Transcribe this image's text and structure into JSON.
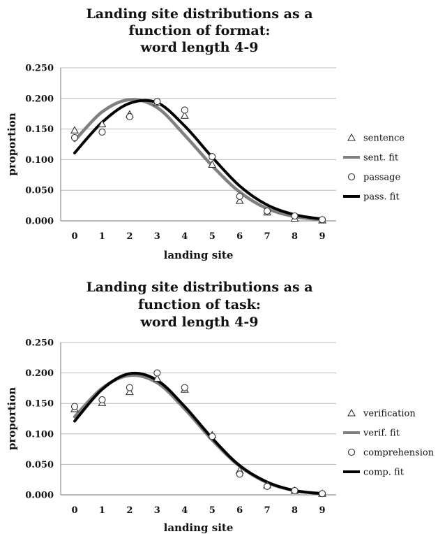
{
  "chart_data": [
    {
      "type": "line",
      "title_lines": [
        "Landing site distributions as a",
        "function of format:",
        "word length 4-9"
      ],
      "xlabel": "landing site",
      "ylabel": "proportion",
      "x": [
        0,
        1,
        2,
        3,
        4,
        5,
        6,
        7,
        8,
        9
      ],
      "xlim": [
        0,
        9
      ],
      "ylim": [
        0,
        0.25
      ],
      "yticks": [
        "0.000",
        "0.050",
        "0.100",
        "0.150",
        "0.200",
        "0.250"
      ],
      "grid": true,
      "legend_position": "right",
      "colors": {
        "fit_a": "#808080",
        "fit_b": "#000000",
        "marker": "#333333"
      },
      "series": [
        {
          "name": "sentence",
          "kind": "triangle-marker",
          "values": [
            0.148,
            0.158,
            0.174,
            0.193,
            0.172,
            0.092,
            0.033,
            0.014,
            0.004,
            0.001
          ]
        },
        {
          "name": "sent. fit",
          "kind": "fit-line",
          "color": "#808080",
          "values": [
            0.131,
            0.178,
            0.198,
            0.185,
            0.14,
            0.09,
            0.047,
            0.02,
            0.007,
            0.002
          ]
        },
        {
          "name": "passage",
          "kind": "circle-marker",
          "values": [
            0.136,
            0.145,
            0.17,
            0.195,
            0.181,
            0.105,
            0.04,
            0.016,
            0.008,
            0.002
          ]
        },
        {
          "name": "pass. fit",
          "kind": "fit-line",
          "color": "#000000",
          "values": [
            0.111,
            0.161,
            0.192,
            0.193,
            0.155,
            0.104,
            0.057,
            0.026,
            0.01,
            0.003
          ]
        }
      ]
    },
    {
      "type": "line",
      "title_lines": [
        "Landing site distributions as a",
        "function of task:",
        "word length 4-9"
      ],
      "xlabel": "landing site",
      "ylabel": "proportion",
      "x": [
        0,
        1,
        2,
        3,
        4,
        5,
        6,
        7,
        8,
        9
      ],
      "xlim": [
        0,
        9
      ],
      "ylim": [
        0,
        0.25
      ],
      "yticks": [
        "0.000",
        "0.050",
        "0.100",
        "0.150",
        "0.200",
        "0.250"
      ],
      "grid": true,
      "legend_position": "right",
      "colors": {
        "fit_a": "#808080",
        "fit_b": "#000000",
        "marker": "#333333"
      },
      "series": [
        {
          "name": "verification",
          "kind": "triangle-marker",
          "values": [
            0.141,
            0.151,
            0.169,
            0.191,
            0.173,
            0.098,
            0.04,
            0.016,
            0.007,
            0.002
          ]
        },
        {
          "name": "verif. fit",
          "kind": "fit-line",
          "color": "#808080",
          "values": [
            0.128,
            0.175,
            0.196,
            0.184,
            0.141,
            0.09,
            0.047,
            0.02,
            0.007,
            0.002
          ]
        },
        {
          "name": "comprehension",
          "kind": "circle-marker",
          "values": [
            0.145,
            0.156,
            0.176,
            0.2,
            0.176,
            0.096,
            0.034,
            0.014,
            0.007,
            0.002
          ]
        },
        {
          "name": "comp. fit",
          "kind": "fit-line",
          "color": "#000000",
          "values": [
            0.121,
            0.173,
            0.199,
            0.188,
            0.145,
            0.093,
            0.048,
            0.021,
            0.007,
            0.002
          ]
        }
      ]
    }
  ]
}
